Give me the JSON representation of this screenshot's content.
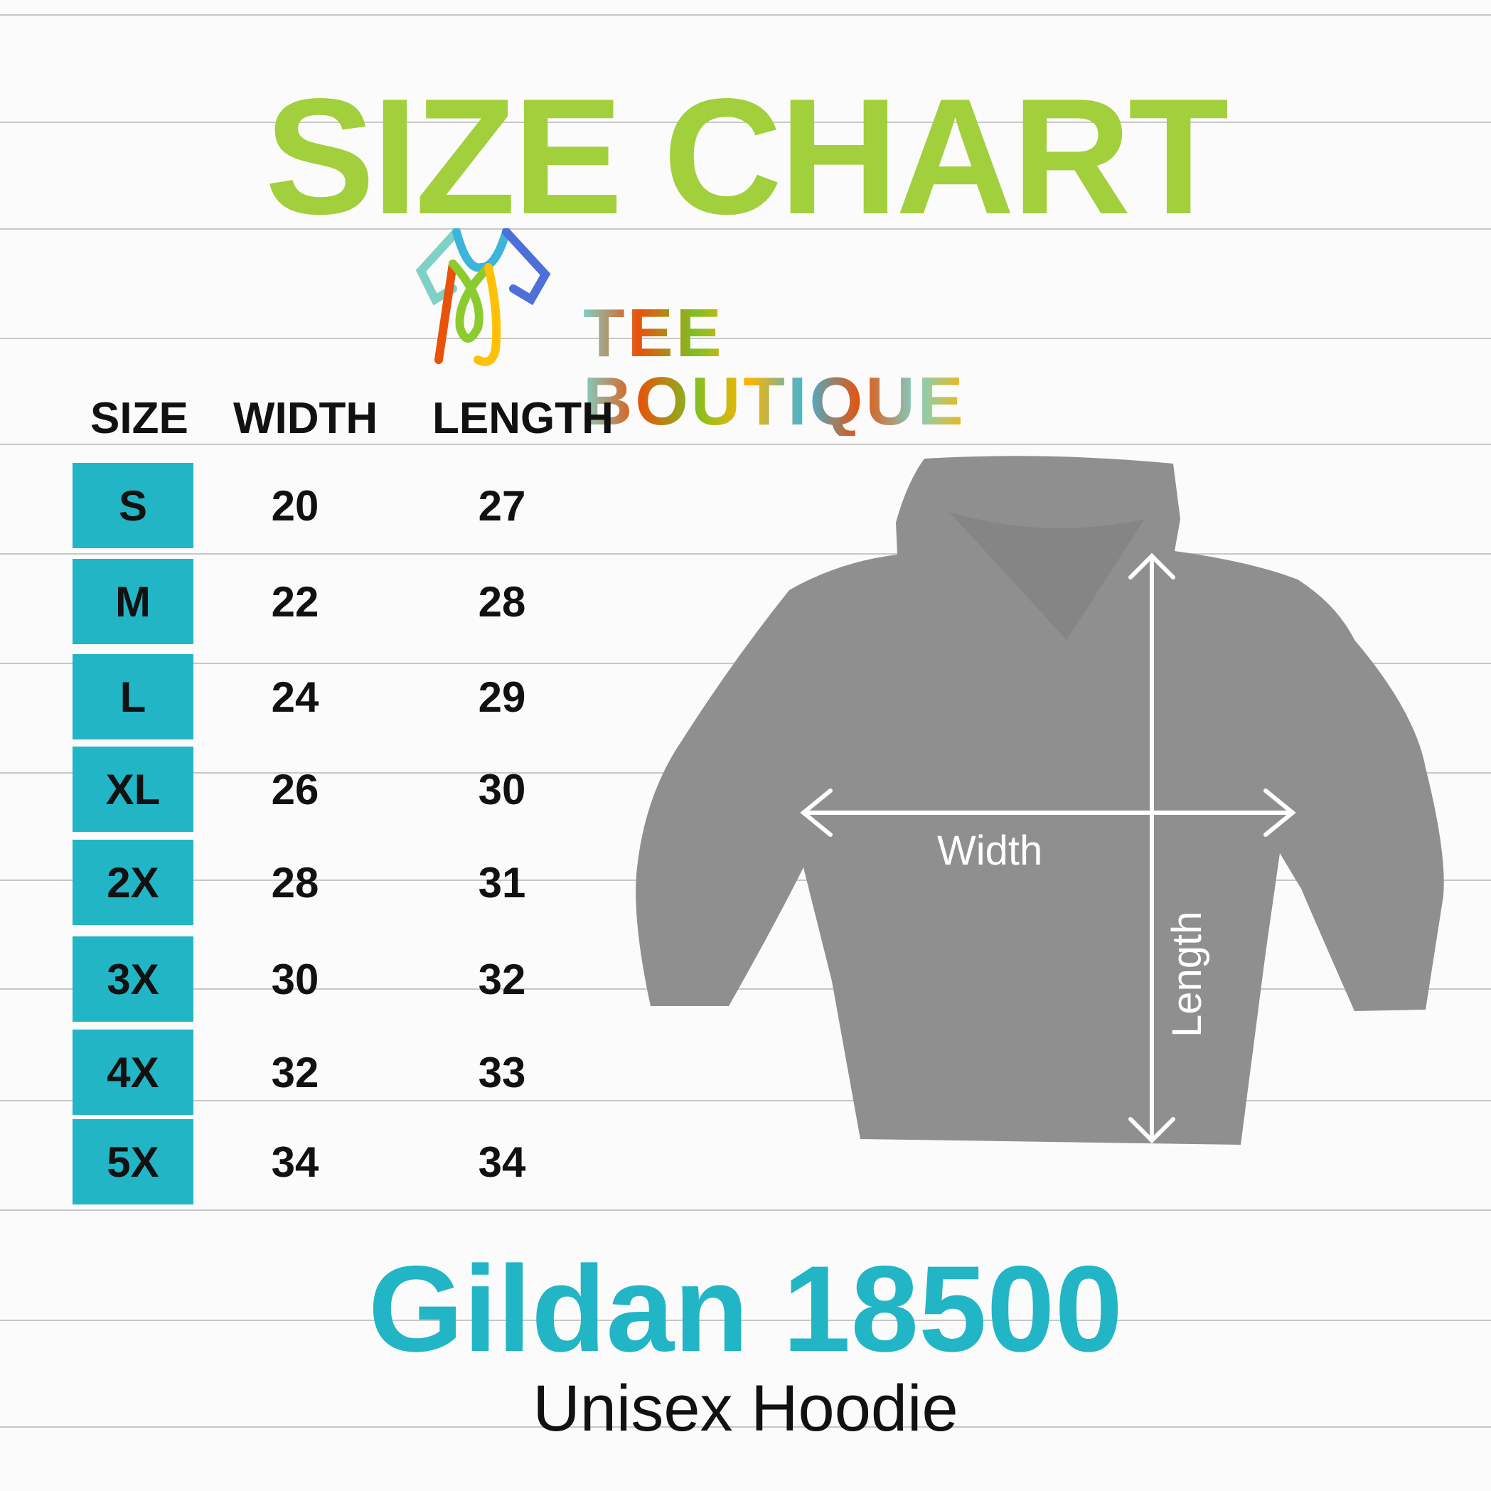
{
  "title": "SIZE CHART",
  "logo": {
    "text": "TEE BOUTIQUE",
    "icon": "tshirt-logo-icon"
  },
  "table": {
    "headers": [
      "SIZE",
      "WIDTH",
      "LENGTH"
    ],
    "rows": [
      {
        "size": "S",
        "width": "20",
        "length": "27"
      },
      {
        "size": "M",
        "width": "22",
        "length": "28"
      },
      {
        "size": "L",
        "width": "24",
        "length": "29"
      },
      {
        "size": "XL",
        "width": "26",
        "length": "30"
      },
      {
        "size": "2X",
        "width": "28",
        "length": "31"
      },
      {
        "size": "3X",
        "width": "30",
        "length": "32"
      },
      {
        "size": "4X",
        "width": "32",
        "length": "33"
      },
      {
        "size": "5X",
        "width": "34",
        "length": "34"
      }
    ]
  },
  "diagram": {
    "width_label": "Width",
    "length_label": "Length",
    "garment_color": "#8f8f8f"
  },
  "model": "Gildan 18500",
  "subtitle": "Unisex Hoodie",
  "colors": {
    "title": "#a2cf3c",
    "accent": "#22b5c6"
  }
}
